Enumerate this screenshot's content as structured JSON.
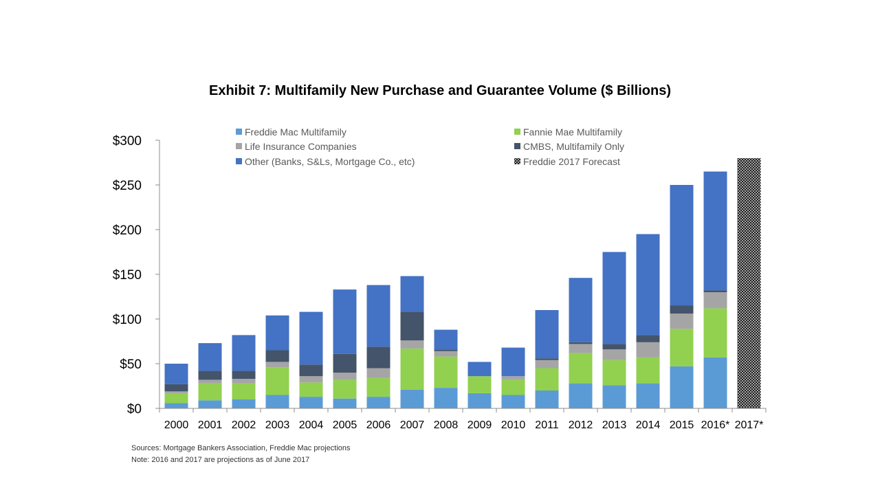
{
  "chart_data": {
    "type": "bar",
    "stacked": true,
    "title": "Exhibit 7: Multifamily New Purchase and Guarantee Volume ($ Billions)",
    "xlabel": "",
    "ylabel": "",
    "ylim": [
      0,
      300
    ],
    "yticks": [
      0,
      50,
      100,
      150,
      200,
      250,
      300
    ],
    "ytick_labels": [
      "$0",
      "$50",
      "$100",
      "$150",
      "$200",
      "$250",
      "$300"
    ],
    "grid": false,
    "legend_position": "top",
    "categories": [
      "2000",
      "2001",
      "2002",
      "2003",
      "2004",
      "2005",
      "2006",
      "2007",
      "2008",
      "2009",
      "2010",
      "2011",
      "2012",
      "2013",
      "2014",
      "2015",
      "2016*",
      "2017*"
    ],
    "series": [
      {
        "name": "Freddie Mac Multifamily",
        "color": "#5B9BD5",
        "values": [
          6,
          9,
          10,
          15,
          13,
          11,
          13,
          21,
          23,
          17,
          15,
          20,
          28,
          26,
          28,
          47,
          57,
          null
        ]
      },
      {
        "name": "Fannie Mae Multifamily",
        "color": "#92D050",
        "values": [
          11,
          19,
          18,
          31,
          16,
          21,
          21,
          46,
          35,
          19,
          17,
          25,
          34,
          28,
          29,
          42,
          55,
          null
        ]
      },
      {
        "name": "Life Insurance Companies",
        "color": "#A5A5A5",
        "values": [
          2,
          4,
          5,
          6,
          7,
          8,
          11,
          9,
          6,
          0,
          4,
          9,
          10,
          12,
          17,
          17,
          18,
          null
        ]
      },
      {
        "name": "CMBS, Multifamily Only",
        "color": "#44546A",
        "values": [
          8,
          10,
          9,
          13,
          13,
          21,
          24,
          32,
          2,
          0,
          0,
          2,
          2,
          6,
          8,
          9,
          2,
          null
        ]
      },
      {
        "name": "Other (Banks, S&Ls, Mortgage Co., etc)",
        "color": "#4472C4",
        "values": [
          23,
          31,
          40,
          39,
          59,
          72,
          69,
          40,
          22,
          16,
          32,
          54,
          72,
          103,
          113,
          135,
          133,
          null
        ]
      },
      {
        "name": "Freddie 2017 Forecast",
        "color": "#1a1a1a",
        "pattern": "crosshatch",
        "values": [
          null,
          null,
          null,
          null,
          null,
          null,
          null,
          null,
          null,
          null,
          null,
          null,
          null,
          null,
          null,
          null,
          null,
          280
        ]
      }
    ]
  },
  "footnotes": {
    "sources": "Sources: Mortgage Bankers Association, Freddie Mac projections",
    "note": "Note:  2016 and 2017 are projections as of June 2017"
  }
}
